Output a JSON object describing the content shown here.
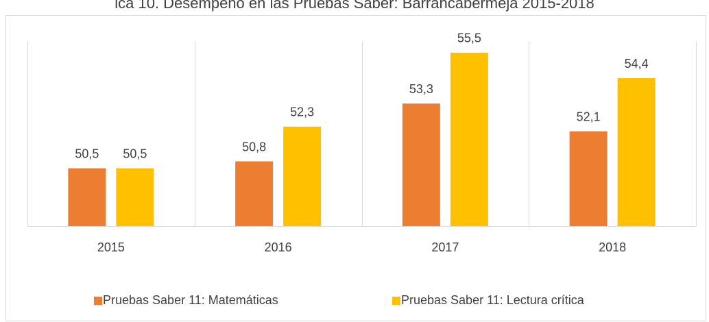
{
  "chart_data": {
    "type": "bar",
    "title": "ica 10. Desempeño en las Pruebas Saber: Barrancabermeja 2015-2018",
    "categories": [
      "2015",
      "2016",
      "2017",
      "2018"
    ],
    "series": [
      {
        "name": "Pruebas Saber 11: Matemáticas",
        "color": "#ed7d31",
        "values": [
          50.5,
          50.8,
          53.3,
          52.1
        ],
        "value_labels": [
          "50,5",
          "50,8",
          "53,3",
          "52,1"
        ]
      },
      {
        "name": "Pruebas Saber 11: Lectura crítica",
        "color": "#ffc000",
        "values": [
          50.5,
          52.3,
          55.5,
          54.4
        ],
        "value_labels": [
          "50,5",
          "52,3",
          "55,5",
          "54,4"
        ]
      }
    ],
    "ylim": [
      48,
      56
    ],
    "grid": true,
    "legend": "bottom"
  }
}
